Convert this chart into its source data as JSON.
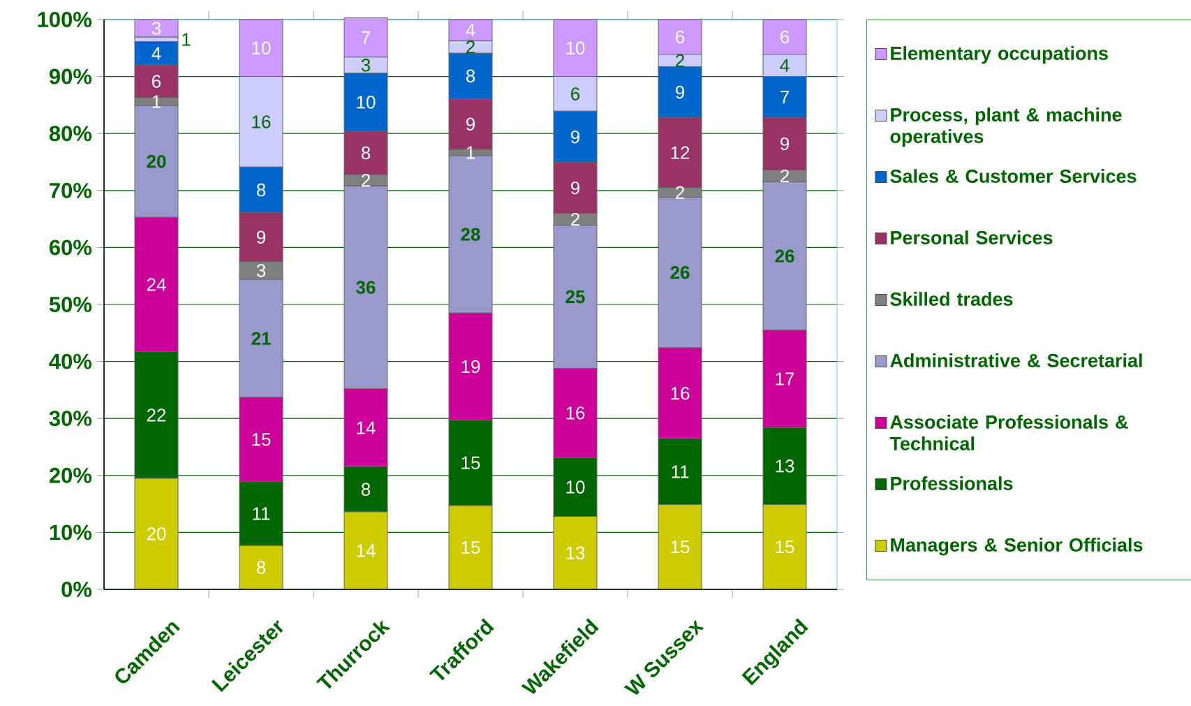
{
  "chart_data": {
    "type": "bar",
    "stacked": true,
    "grid": "y",
    "legend": "right",
    "categories": [
      "Camden",
      "Leicester",
      "Thurrock",
      "Trafford",
      "Wakefield",
      "W Sussex",
      "England"
    ],
    "ylim": [
      0,
      100
    ],
    "yticks": [
      {
        "value": 0,
        "label": "0%"
      },
      {
        "value": 10,
        "label": "10%"
      },
      {
        "value": 20,
        "label": "20%"
      },
      {
        "value": 30,
        "label": "30%"
      },
      {
        "value": 40,
        "label": "40%"
      },
      {
        "value": 50,
        "label": "50%"
      },
      {
        "value": 60,
        "label": "60%"
      },
      {
        "value": 70,
        "label": "70%"
      },
      {
        "value": 80,
        "label": "80%"
      },
      {
        "value": 90,
        "label": "90%"
      },
      {
        "value": 100,
        "label": "100%"
      }
    ],
    "series": [
      {
        "name": "Managers & Senior Officials",
        "color": "#cccc00",
        "values": [
          19.5,
          7.7,
          13.6,
          14.7,
          12.8,
          14.9,
          14.9
        ],
        "value_labels": [
          "20",
          "8",
          "14",
          "15",
          "13",
          "15",
          "15"
        ]
      },
      {
        "name": "Professionals",
        "color": "#006600",
        "values": [
          22.2,
          11.2,
          7.9,
          15.0,
          10.3,
          11.5,
          13.5
        ],
        "value_labels": [
          "22",
          "11",
          "8",
          "15",
          "10",
          "11",
          "13"
        ]
      },
      {
        "name": "Associate Professionals & Technical",
        "color": "#cc0099",
        "values": [
          23.6,
          14.8,
          13.7,
          18.8,
          15.7,
          16.0,
          17.1
        ],
        "value_labels": [
          "24",
          "15",
          "14",
          "19",
          "16",
          "16",
          "17"
        ]
      },
      {
        "name": "Administrative & Secretarial",
        "color": "#9999cc",
        "values": [
          19.6,
          20.7,
          35.6,
          27.6,
          25.1,
          26.4,
          26.0
        ],
        "value_labels": [
          "20",
          "21",
          "36",
          "28",
          "25",
          "26",
          "26"
        ]
      },
      {
        "name": "Skilled trades",
        "color": "#808080",
        "values": [
          1.4,
          3.1,
          2.0,
          1.1,
          2.1,
          1.7,
          2.1
        ],
        "value_labels": [
          "1",
          "3",
          "2",
          "1",
          "2",
          "2",
          "2"
        ]
      },
      {
        "name": "Personal Services",
        "color": "#993366",
        "values": [
          5.7,
          8.6,
          7.6,
          8.9,
          8.9,
          12.3,
          9.2
        ],
        "value_labels": [
          "6",
          "9",
          "8",
          "9",
          "9",
          "12",
          "9"
        ]
      },
      {
        "name": "Sales & Customer Services",
        "color": "#0066cc",
        "values": [
          4.1,
          8.0,
          10.2,
          8.0,
          9.0,
          8.9,
          7.2
        ],
        "value_labels": [
          "4",
          "8",
          "10",
          "8",
          "9",
          "9",
          "7"
        ]
      },
      {
        "name": "Process, plant & machine operatives",
        "color": "#ccccff",
        "values": [
          0.8,
          15.9,
          2.8,
          2.2,
          6.1,
          2.2,
          3.9
        ],
        "value_labels": [
          "1",
          "16",
          "3",
          "2",
          "6",
          "2",
          "4"
        ]
      },
      {
        "name": "Elementary occupations",
        "color": "#cc99ff",
        "values": [
          3.1,
          10.0,
          6.9,
          3.7,
          10.0,
          6.1,
          6.1
        ],
        "value_labels": [
          "3",
          "10",
          "7",
          "4",
          "10",
          "6",
          "6"
        ]
      }
    ]
  }
}
